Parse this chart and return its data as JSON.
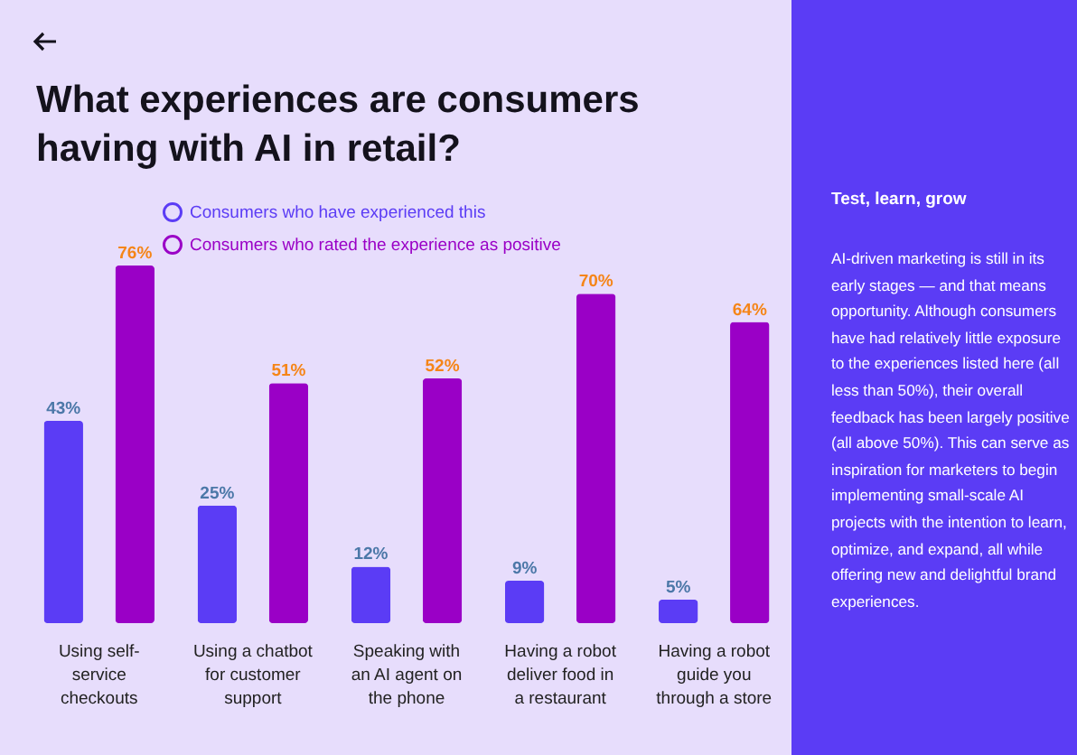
{
  "chart_data": {
    "type": "bar",
    "title": "What experiences are consumers having with AI in retail?",
    "categories": [
      "Using self-service checkouts",
      "Using a chatbot for customer support",
      "Speaking with an AI agent on the phone",
      "Having a robot deliver food in a restaurant",
      "Having a robot guide you through a store"
    ],
    "series": [
      {
        "name": "Consumers who have experienced this",
        "color": "#5b3cf5",
        "values": [
          43,
          25,
          12,
          9,
          5
        ],
        "value_labels": [
          "43%",
          "25%",
          "12%",
          "9%",
          "5%"
        ]
      },
      {
        "name": "Consumers who rated the experience as positive",
        "color": "#9a00c6",
        "values": [
          76,
          51,
          52,
          70,
          64
        ],
        "value_labels": [
          "76%",
          "51%",
          "52%",
          "70%",
          "64%"
        ]
      }
    ],
    "legend": "top left",
    "annotations": [
      "Test, learn, grow",
      "AI-driven marketing is still in its early stages — and that means opportunity. Although consumers have had relatively little exposure to the experiences listed here (all less than 50%), their overall feedback has been largely positive (all above 50%). This can serve as inspiration for marketers to begin implementing small-scale AI projects with the intention to learn, optimize, and expand, all while offering new and delightful brand experiences."
    ]
  }
}
